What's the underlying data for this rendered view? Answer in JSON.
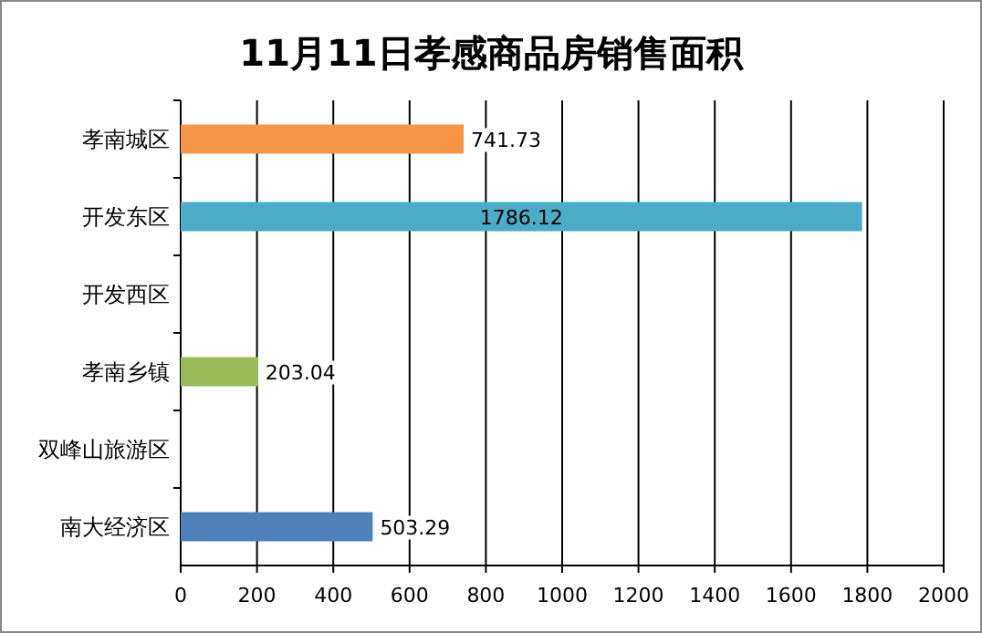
{
  "chart_data": {
    "type": "bar",
    "orientation": "horizontal",
    "title": "11月11日孝感商品房销售面积",
    "categories": [
      "孝南城区",
      "开发东区",
      "开发西区",
      "孝南乡镇",
      "双峰山旅游区",
      "南大经济区"
    ],
    "values": [
      741.73,
      1786.12,
      null,
      203.04,
      null,
      503.29
    ],
    "colors": [
      "#f79646",
      "#4bacc6",
      null,
      "#9bbb59",
      null,
      "#4f81bd"
    ],
    "xlim": [
      0,
      2000
    ],
    "xticks": [
      0,
      200,
      400,
      600,
      800,
      1000,
      1200,
      1400,
      1600,
      1800,
      2000
    ],
    "grid": "x",
    "data_labels": true
  }
}
